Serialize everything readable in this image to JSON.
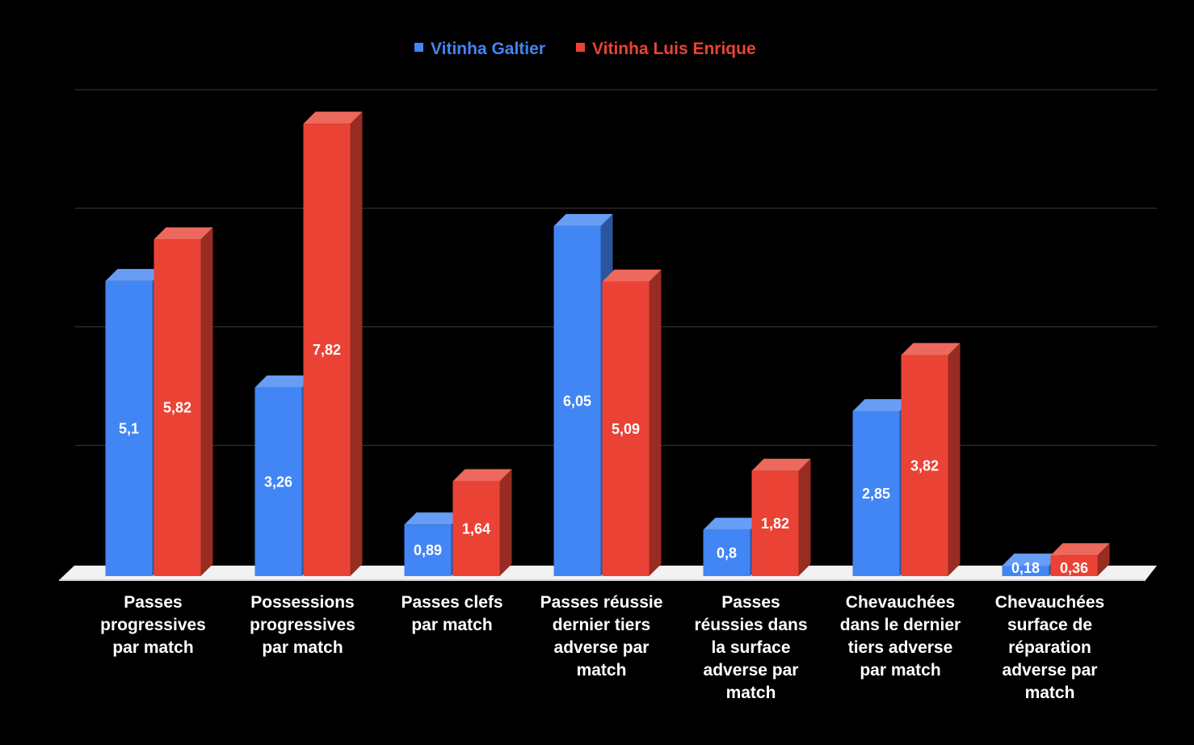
{
  "chart_data": {
    "type": "bar",
    "title": "",
    "xlabel": "",
    "ylabel": "",
    "ylim": [
      0,
      8.2
    ],
    "grid": true,
    "legend_position": "top",
    "categories": [
      [
        "Passes",
        "progressives",
        "par match"
      ],
      [
        "Possessions",
        "progressives",
        "par match"
      ],
      [
        "Passes clefs",
        "par match"
      ],
      [
        "Passes réussie",
        "dernier tiers",
        "adverse par",
        "match"
      ],
      [
        "Passes",
        "réussies dans",
        "la surface",
        "adverse par",
        "match"
      ],
      [
        "Chevauchées",
        "dans le dernier",
        "tiers adverse",
        "par match"
      ],
      [
        "Chevauchées",
        "surface de",
        "réparation",
        "adverse par",
        "match"
      ]
    ],
    "series": [
      {
        "name": "Vitinha Galtier",
        "color": "#4285f4",
        "values": [
          5.1,
          3.26,
          0.89,
          6.05,
          0.8,
          2.85,
          0.18
        ],
        "labels": [
          "5,1",
          "3,26",
          "0,89",
          "6,05",
          "0,8",
          "2,85",
          "0,18"
        ]
      },
      {
        "name": "Vitinha Luis Enrique",
        "color": "#ea4335",
        "values": [
          5.82,
          7.82,
          1.64,
          5.09,
          1.82,
          3.82,
          0.36
        ],
        "labels": [
          "5,82",
          "7,82",
          "1,64",
          "5,09",
          "1,82",
          "3,82",
          "0,36"
        ]
      }
    ]
  }
}
